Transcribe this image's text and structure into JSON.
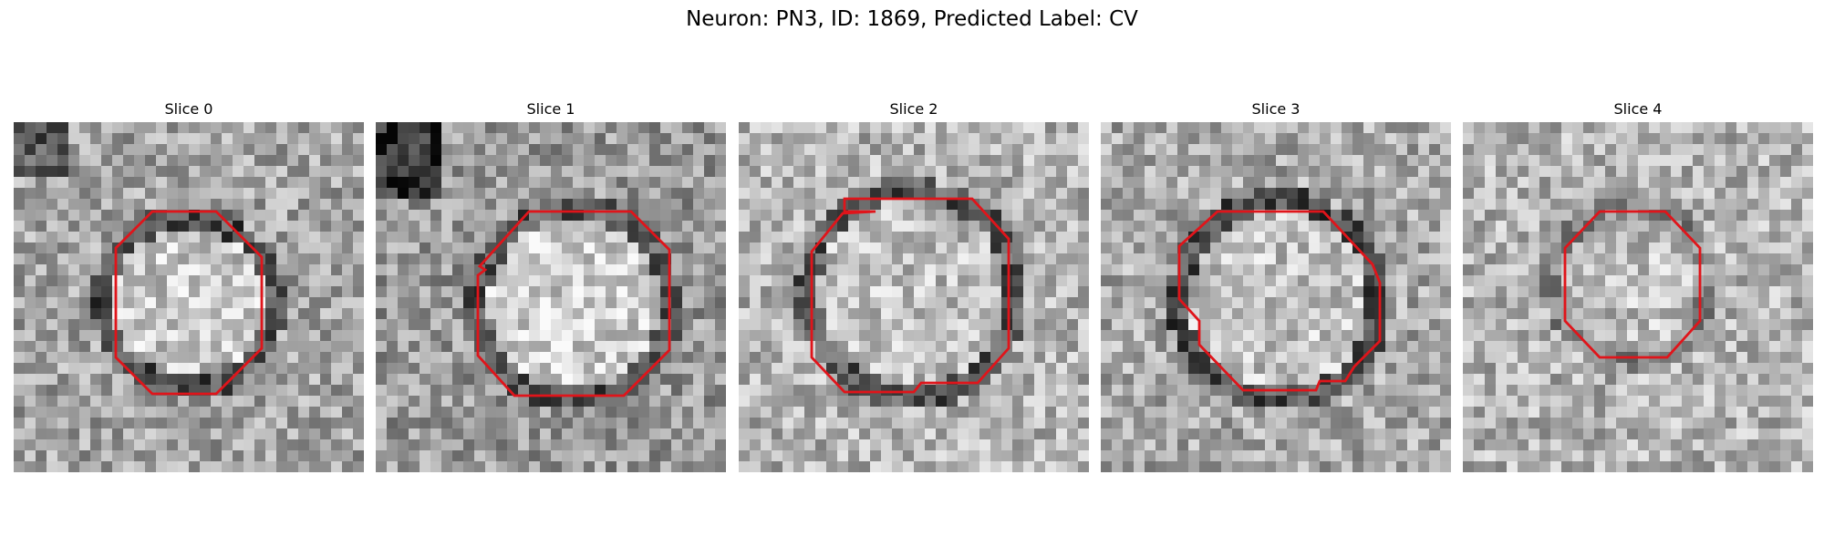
{
  "figure": {
    "title": "Neuron: PN3, ID: 1869, Predicted Label: CV"
  },
  "panels": [
    {
      "title": "Slice 0",
      "outline_color": "#e0141a"
    },
    {
      "title": "Slice 1",
      "outline_color": "#e0141a"
    },
    {
      "title": "Slice 2",
      "outline_color": "#e0141a"
    },
    {
      "title": "Slice 3",
      "outline_color": "#e0141a"
    },
    {
      "title": "Slice 4",
      "outline_color": "#e0141a"
    }
  ]
}
